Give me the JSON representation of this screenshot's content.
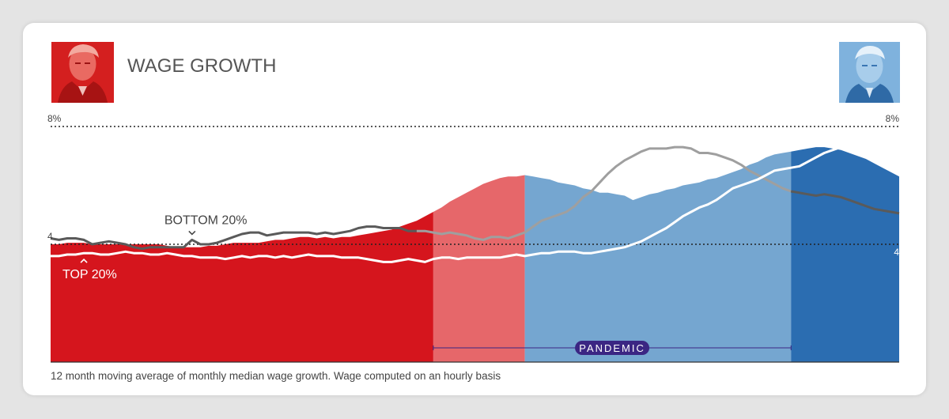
{
  "chart_data": {
    "type": "area",
    "title": "WAGE GROWTH",
    "caption": "12 month moving average of monthly median wage growth. Wage computed on an hourly basis",
    "y_axis": {
      "unit": "percent",
      "ylim": [
        0,
        8
      ],
      "left_labels": [
        {
          "value": 8,
          "label": "8%"
        },
        {
          "value": 4,
          "label": "4"
        }
      ],
      "right_labels": [
        {
          "value": 8,
          "label": "8%"
        },
        {
          "value": 4,
          "label": "4"
        }
      ]
    },
    "x": [
      0,
      1,
      2,
      3,
      4,
      5,
      6,
      7,
      8,
      9,
      10,
      11,
      12,
      13,
      14,
      15,
      16,
      17,
      18,
      19,
      20,
      21,
      22,
      23,
      24,
      25,
      26,
      27,
      28,
      29,
      30,
      31,
      32,
      33,
      34,
      35,
      36,
      37,
      38,
      39,
      40,
      41,
      42,
      43,
      44,
      45,
      46,
      47,
      48,
      49,
      50,
      51,
      52,
      53,
      54,
      55,
      56,
      57,
      58,
      59,
      60,
      61,
      62,
      63,
      64,
      65,
      66,
      67,
      68,
      69,
      70,
      71,
      72,
      73,
      74,
      75,
      76,
      77,
      78,
      79,
      80,
      81,
      82,
      83,
      84,
      85,
      86,
      87,
      88,
      89,
      90,
      91,
      92,
      93,
      94,
      95,
      96,
      97,
      98,
      99,
      100,
      101,
      102
    ],
    "series": [
      {
        "name": "BOTTOM 20%",
        "values": [
          4.2,
          4.15,
          4.2,
          4.2,
          4.15,
          4.0,
          4.05,
          4.1,
          4.05,
          4.0,
          3.9,
          3.85,
          3.9,
          3.9,
          3.9,
          3.9,
          3.9,
          4.15,
          4.0,
          4.0,
          4.05,
          4.15,
          4.25,
          4.35,
          4.4,
          4.4,
          4.3,
          4.35,
          4.4,
          4.4,
          4.4,
          4.4,
          4.35,
          4.4,
          4.35,
          4.4,
          4.45,
          4.55,
          4.6,
          4.6,
          4.55,
          4.55,
          4.55,
          4.45,
          4.45,
          4.45,
          4.4,
          4.35,
          4.4,
          4.35,
          4.3,
          4.2,
          4.15,
          4.25,
          4.25,
          4.2,
          4.3,
          4.4,
          4.6,
          4.8,
          4.9,
          5.0,
          5.1,
          5.3,
          5.6,
          5.8,
          6.1,
          6.4,
          6.65,
          6.85,
          7.0,
          7.15,
          7.25,
          7.25,
          7.25,
          7.3,
          7.3,
          7.25,
          7.1,
          7.1,
          7.05,
          6.95,
          6.85,
          6.7,
          6.5,
          6.35,
          6.2,
          6.05,
          5.9,
          5.8,
          5.75,
          5.7,
          5.65,
          5.7,
          5.65,
          5.6,
          5.5,
          5.4,
          5.3,
          5.2,
          5.15,
          5.1,
          5.05
        ]
      },
      {
        "name": "TOP 20%",
        "values": [
          3.6,
          3.6,
          3.65,
          3.65,
          3.7,
          3.7,
          3.65,
          3.65,
          3.7,
          3.75,
          3.7,
          3.7,
          3.65,
          3.65,
          3.7,
          3.65,
          3.6,
          3.6,
          3.55,
          3.55,
          3.55,
          3.5,
          3.55,
          3.6,
          3.55,
          3.6,
          3.6,
          3.55,
          3.6,
          3.55,
          3.6,
          3.65,
          3.6,
          3.6,
          3.6,
          3.55,
          3.55,
          3.55,
          3.5,
          3.45,
          3.4,
          3.4,
          3.45,
          3.5,
          3.45,
          3.4,
          3.5,
          3.55,
          3.55,
          3.5,
          3.55,
          3.55,
          3.55,
          3.55,
          3.55,
          3.6,
          3.65,
          3.6,
          3.65,
          3.7,
          3.7,
          3.75,
          3.75,
          3.75,
          3.7,
          3.7,
          3.75,
          3.8,
          3.85,
          3.9,
          4.0,
          4.1,
          4.25,
          4.4,
          4.55,
          4.75,
          4.95,
          5.1,
          5.25,
          5.35,
          5.5,
          5.7,
          5.9,
          6.0,
          6.1,
          6.2,
          6.35,
          6.5,
          6.55,
          6.6,
          6.65,
          6.8,
          6.95,
          7.1,
          7.2,
          7.3,
          7.35,
          7.4,
          7.45,
          7.45,
          7.45,
          7.4,
          7.3
        ]
      },
      {
        "name": "Median (filled area)",
        "values": [
          4.0,
          4.0,
          4.05,
          4.05,
          4.05,
          4.0,
          4.0,
          4.0,
          4.0,
          4.0,
          4.0,
          4.0,
          4.0,
          4.0,
          3.95,
          3.9,
          3.9,
          3.9,
          3.9,
          3.95,
          3.95,
          4.0,
          4.05,
          4.05,
          4.05,
          4.05,
          4.1,
          4.15,
          4.15,
          4.2,
          4.25,
          4.25,
          4.2,
          4.25,
          4.2,
          4.25,
          4.25,
          4.3,
          4.35,
          4.4,
          4.45,
          4.5,
          4.6,
          4.7,
          4.8,
          4.95,
          5.1,
          5.25,
          5.45,
          5.6,
          5.75,
          5.9,
          6.05,
          6.15,
          6.25,
          6.3,
          6.3,
          6.35,
          6.3,
          6.25,
          6.2,
          6.1,
          6.05,
          6.0,
          5.9,
          5.85,
          5.75,
          5.75,
          5.7,
          5.65,
          5.5,
          5.6,
          5.7,
          5.75,
          5.85,
          5.9,
          6.0,
          6.05,
          6.1,
          6.2,
          6.25,
          6.35,
          6.45,
          6.55,
          6.7,
          6.8,
          6.95,
          7.05,
          7.1,
          7.15,
          7.2,
          7.25,
          7.3,
          7.3,
          7.25,
          7.2,
          7.1,
          7.0,
          6.9,
          6.75,
          6.6,
          6.45,
          6.3
        ]
      }
    ],
    "segments": [
      {
        "name": "Trump term",
        "color": "#d5151d"
      },
      {
        "name": "Trump term (pandemic)",
        "color": "#e6676a"
      },
      {
        "name": "Biden term (pandemic)",
        "color": "#75a6d0"
      },
      {
        "name": "Biden term",
        "color": "#2b6db1"
      }
    ],
    "annotations": [
      {
        "text": "BOTTOM 20%",
        "series": "BOTTOM 20%"
      },
      {
        "text": "TOP 20%",
        "series": "TOP 20%"
      },
      {
        "text": "PANDEMIC",
        "kind": "period-badge"
      }
    ]
  },
  "colors": {
    "bottom_line": "#555555",
    "top_line": "#ffffff",
    "pandemic_badge": "#3b2683",
    "axis_text": "#444444",
    "title_text": "#555555"
  }
}
